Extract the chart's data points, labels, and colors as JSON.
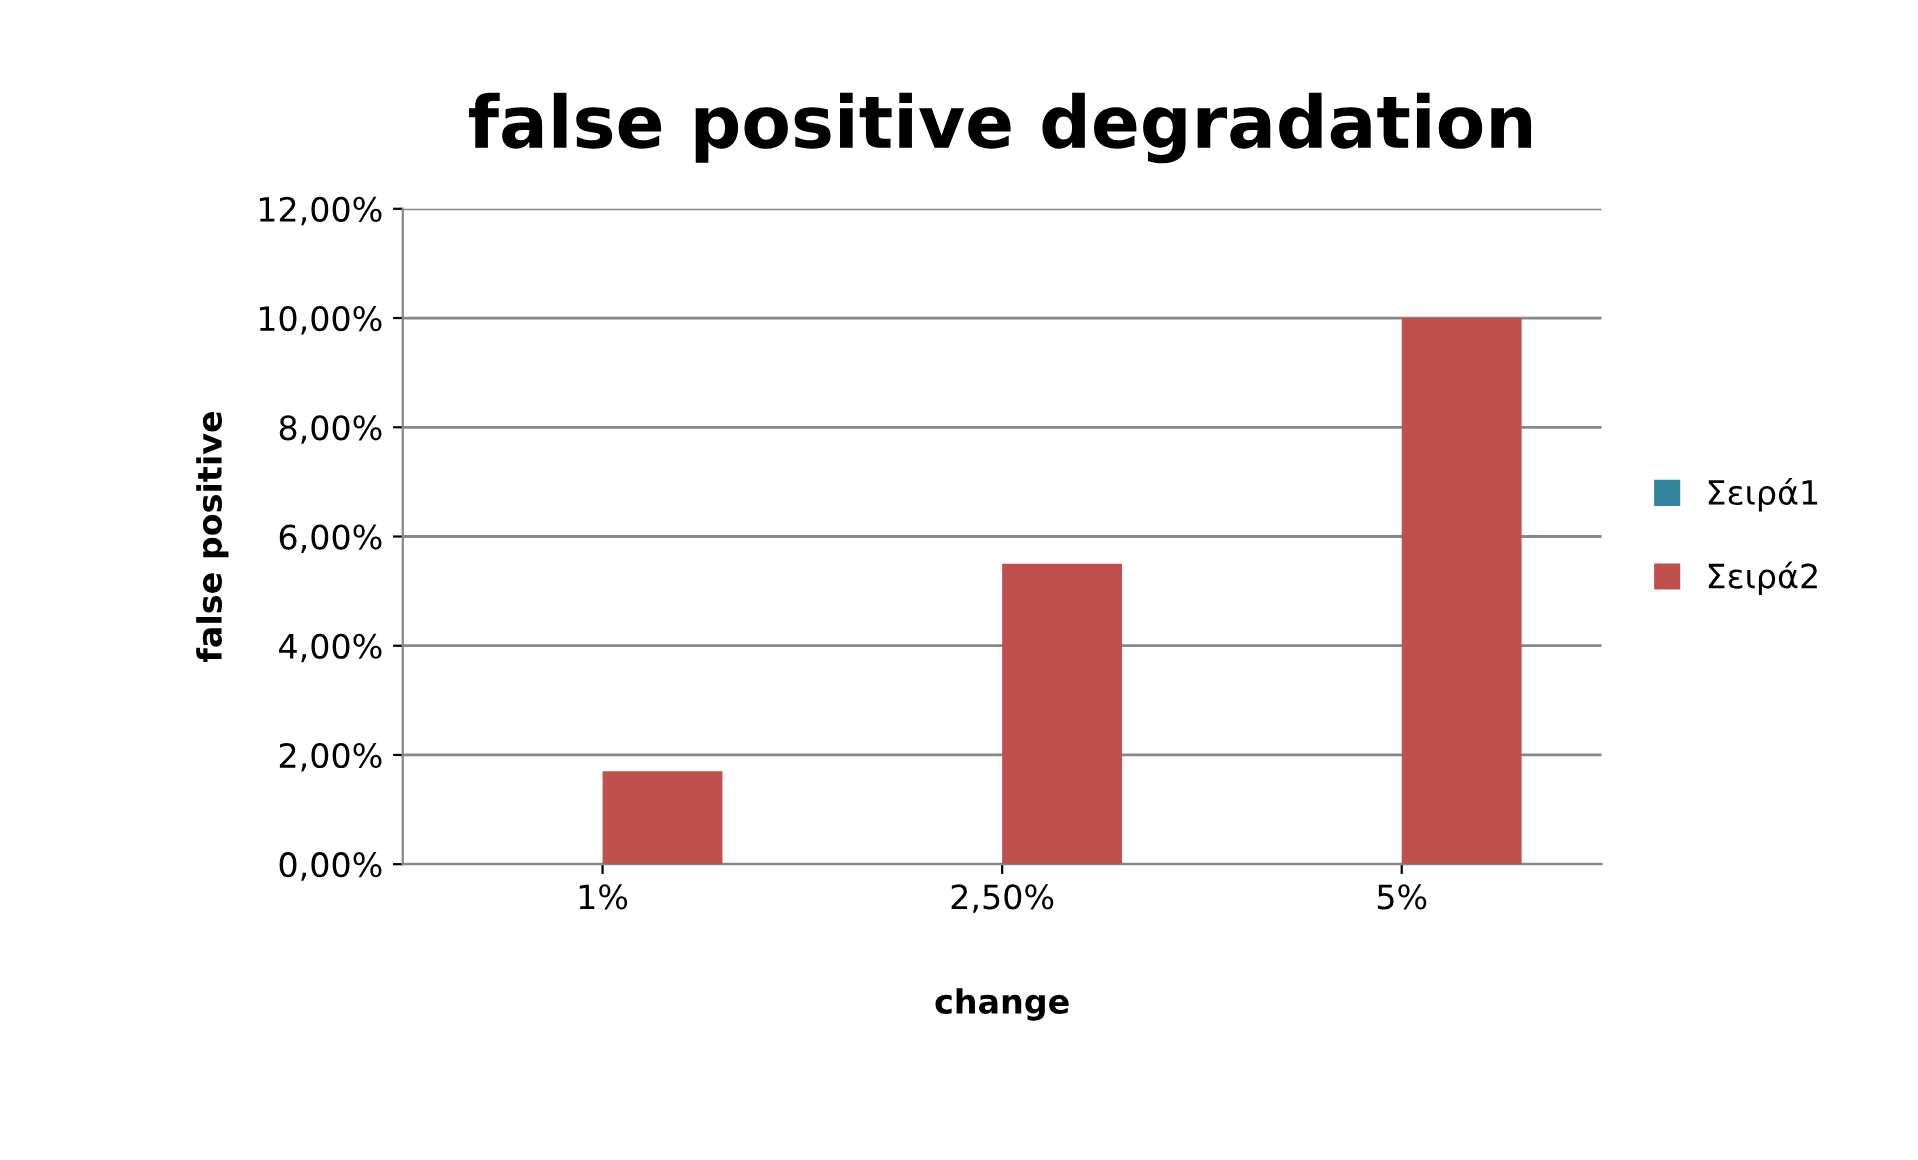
{
  "chart_data": {
    "type": "bar",
    "title": "false positive degradation",
    "xlabel": "change",
    "ylabel": "false positive",
    "categories": [
      "1%",
      "2,50%",
      "5%"
    ],
    "series": [
      {
        "name": "Σειρά1",
        "color": "#31849b",
        "values": [
          null,
          null,
          null
        ]
      },
      {
        "name": "Σειρά2",
        "color": "#c0504d",
        "values": [
          1.7,
          5.5,
          10.0
        ]
      }
    ],
    "ylim": [
      0,
      12
    ],
    "yticks": [
      {
        "value": 0,
        "label": "0,00%"
      },
      {
        "value": 2,
        "label": "2,00%"
      },
      {
        "value": 4,
        "label": "4,00%"
      },
      {
        "value": 6,
        "label": "6,00%"
      },
      {
        "value": 8,
        "label": "8,00%"
      },
      {
        "value": 10,
        "label": "10,00%"
      },
      {
        "value": 12,
        "label": "12,00%"
      }
    ],
    "grid": "y",
    "legend": "right"
  }
}
